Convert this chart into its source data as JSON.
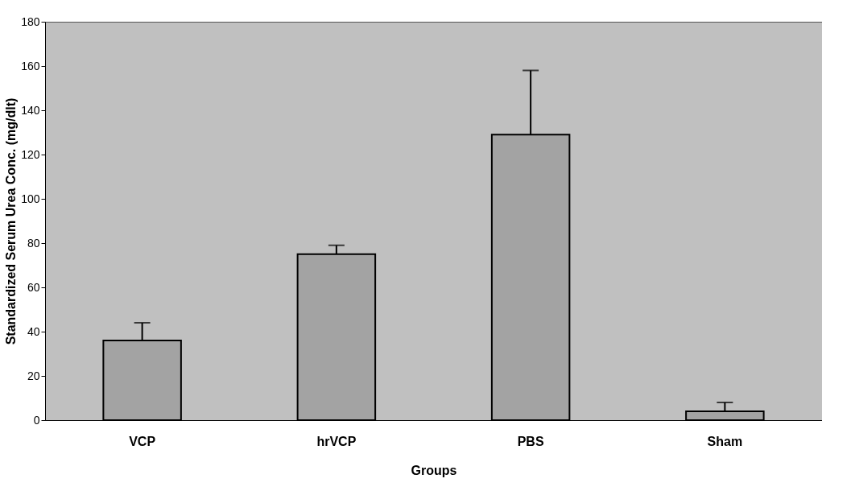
{
  "chart_data": {
    "type": "bar",
    "xlabel": "Groups",
    "ylabel": "Standardized Serum Urea Conc. (mg/dlt)",
    "categories": [
      "VCP",
      "hrVCP",
      "PBS",
      "Sham"
    ],
    "values": [
      36,
      75,
      129,
      4
    ],
    "errors": [
      8,
      4,
      29,
      4
    ],
    "color": "#a3a3a3",
    "ylim": [
      0,
      180
    ],
    "yticks": [
      0,
      20,
      40,
      60,
      80,
      100,
      120,
      140,
      160,
      180
    ]
  }
}
